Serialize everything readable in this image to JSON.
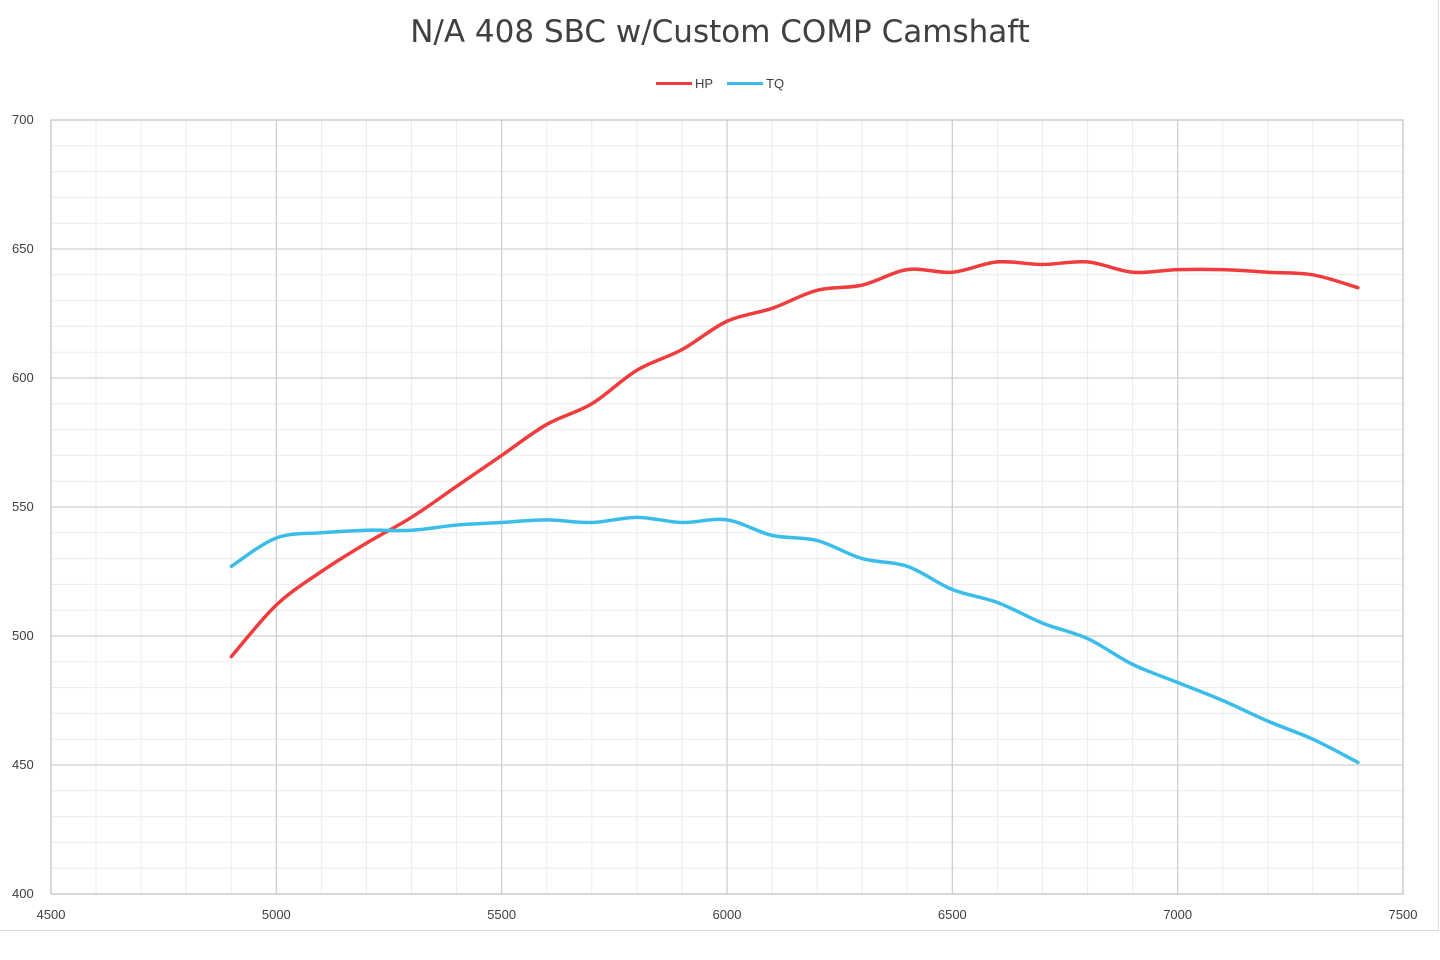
{
  "chart_data": {
    "type": "line",
    "title": "N/A 408 SBC w/Custom COMP Camshaft",
    "xlabel": "",
    "ylabel": "",
    "xlim": [
      4500,
      7500
    ],
    "ylim": [
      400,
      700
    ],
    "xticks": [
      4500,
      5000,
      5500,
      6000,
      6500,
      7000,
      7500
    ],
    "yticks": [
      400,
      450,
      500,
      550,
      600,
      650,
      700
    ],
    "grid": true,
    "legend_position": "top-center",
    "x": [
      4900,
      5000,
      5100,
      5200,
      5300,
      5400,
      5500,
      5600,
      5700,
      5800,
      5900,
      6000,
      6100,
      6200,
      6300,
      6400,
      6500,
      6600,
      6700,
      6800,
      6900,
      7000,
      7100,
      7200,
      7300,
      7400
    ],
    "series": [
      {
        "name": "HP",
        "color": "#f03c3c",
        "values": [
          492,
          512,
          525,
          536,
          546,
          558,
          570,
          582,
          590,
          603,
          611,
          622,
          627,
          634,
          636,
          642,
          641,
          645,
          644,
          645,
          641,
          642,
          642,
          641,
          640,
          635
        ]
      },
      {
        "name": "TQ",
        "color": "#3bbdea",
        "values": [
          527,
          538,
          540,
          541,
          541,
          543,
          544,
          545,
          544,
          546,
          544,
          545,
          539,
          537,
          530,
          527,
          518,
          513,
          505,
          499,
          489,
          482,
          475,
          467,
          460,
          451
        ]
      }
    ]
  }
}
